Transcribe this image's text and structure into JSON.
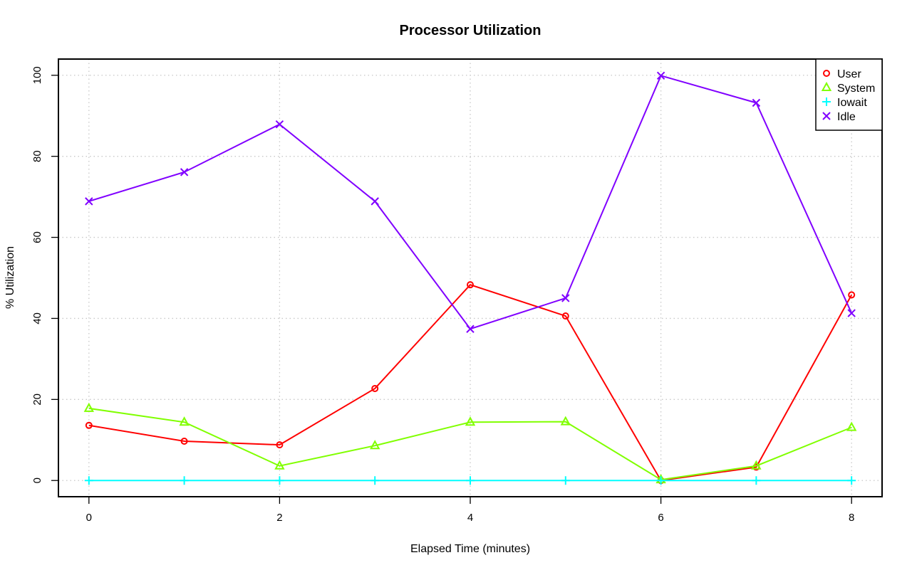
{
  "chart_data": {
    "type": "line",
    "title": "Processor Utilization",
    "xlabel": "Elapsed Time (minutes)",
    "ylabel": "% Utilization",
    "x": [
      0,
      1,
      2,
      3,
      4,
      5,
      6,
      7,
      8
    ],
    "xlim": [
      -0.32,
      8.32
    ],
    "ylim": [
      -4,
      104
    ],
    "xticks": [
      0,
      2,
      4,
      6,
      8
    ],
    "yticks": [
      0,
      20,
      40,
      60,
      80,
      100
    ],
    "grid": true,
    "legend": "top-right",
    "series": [
      {
        "name": "User",
        "color": "#ff0000",
        "marker": "circle",
        "values": [
          13.6,
          9.7,
          8.8,
          22.7,
          48.3,
          40.6,
          0.0,
          3.3,
          45.8
        ]
      },
      {
        "name": "System",
        "color": "#80ff00",
        "marker": "triangle",
        "values": [
          17.8,
          14.4,
          3.6,
          8.6,
          14.4,
          14.5,
          0.2,
          3.6,
          13.1
        ]
      },
      {
        "name": "Iowait",
        "color": "#00ffff",
        "marker": "plus",
        "values": [
          0,
          0,
          0,
          0,
          0,
          0,
          0,
          0,
          0
        ]
      },
      {
        "name": "Idle",
        "color": "#8000ff",
        "marker": "cross",
        "values": [
          68.9,
          76.1,
          87.9,
          68.9,
          37.4,
          45.0,
          99.9,
          93.2,
          41.3
        ]
      }
    ]
  }
}
